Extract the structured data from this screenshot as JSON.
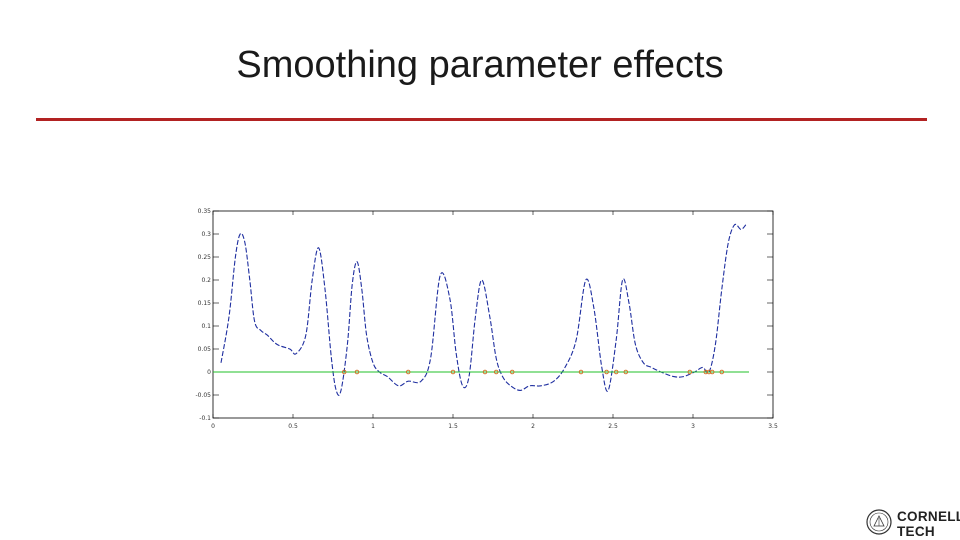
{
  "slide": {
    "title": "Smoothing parameter effects",
    "rule_color": "#b22222"
  },
  "logo": {
    "line1": "CORNELL",
    "line2": "TECH",
    "color": "#222222"
  },
  "chart_data": {
    "type": "line",
    "title": "",
    "xlabel": "",
    "ylabel": "",
    "xlim": [
      0,
      3.5
    ],
    "ylim": [
      -0.1,
      0.35
    ],
    "x_ticks": [
      0,
      0.5,
      1,
      1.5,
      2,
      2.5,
      3,
      3.5
    ],
    "x_tick_labels": [
      "0",
      "0.5",
      "1",
      "1.5",
      "2",
      "2.5",
      "3",
      "3.5"
    ],
    "y_ticks": [
      -0.1,
      -0.05,
      0,
      0.05,
      0.1,
      0.15,
      0.2,
      0.25,
      0.3,
      0.35
    ],
    "y_tick_labels": [
      "-0.1",
      "-0.05",
      "0",
      "0.05",
      "0.1",
      "0.15",
      "0.2",
      "0.25",
      "0.3",
      "0.35"
    ],
    "grid": false,
    "legend": "none",
    "series": [
      {
        "style": "dashed",
        "color": "#1f2fa0",
        "x": [
          0.05,
          0.1,
          0.14,
          0.17,
          0.2,
          0.23,
          0.26,
          0.3,
          0.34,
          0.4,
          0.48,
          0.52,
          0.58,
          0.62,
          0.66,
          0.7,
          0.74,
          0.77,
          0.8,
          0.84,
          0.87,
          0.9,
          0.93,
          0.96,
          1.0,
          1.04,
          1.09,
          1.16,
          1.22,
          1.3,
          1.36,
          1.42,
          1.48,
          1.52,
          1.56,
          1.6,
          1.64,
          1.68,
          1.73,
          1.77,
          1.81,
          1.86,
          1.92,
          1.98,
          2.05,
          2.13,
          2.2,
          2.27,
          2.33,
          2.38,
          2.43,
          2.47,
          2.52,
          2.56,
          2.6,
          2.64,
          2.69,
          2.74,
          2.8,
          2.88,
          2.94,
          3.01,
          3.06,
          3.1,
          3.14,
          3.18,
          3.22,
          3.26,
          3.3,
          3.33
        ],
        "y": [
          0.02,
          0.12,
          0.25,
          0.3,
          0.28,
          0.2,
          0.11,
          0.09,
          0.08,
          0.06,
          0.05,
          0.04,
          0.08,
          0.2,
          0.27,
          0.18,
          0.03,
          -0.04,
          -0.04,
          0.06,
          0.19,
          0.24,
          0.18,
          0.08,
          0.02,
          0.0,
          -0.01,
          -0.03,
          -0.02,
          -0.02,
          0.03,
          0.21,
          0.16,
          0.04,
          -0.03,
          -0.01,
          0.12,
          0.2,
          0.12,
          0.03,
          -0.01,
          -0.03,
          -0.04,
          -0.03,
          -0.03,
          -0.02,
          0.01,
          0.07,
          0.2,
          0.14,
          0.01,
          -0.04,
          0.07,
          0.2,
          0.15,
          0.06,
          0.02,
          0.01,
          0.0,
          -0.01,
          -0.01,
          0.0,
          0.01,
          0.0,
          0.06,
          0.18,
          0.28,
          0.32,
          0.31,
          0.32
        ]
      },
      {
        "style": "solid",
        "color": "#22c02a",
        "x": [
          0.0,
          3.35
        ],
        "y": [
          0.0,
          0.0
        ]
      }
    ],
    "markers": {
      "color": "#d2691e",
      "x": [
        0.82,
        0.9,
        1.22,
        1.5,
        1.7,
        1.77,
        1.87,
        2.3,
        2.46,
        2.52,
        2.58,
        2.98,
        3.08,
        3.1,
        3.12,
        3.18
      ],
      "y": [
        0,
        0,
        0,
        0,
        0,
        0,
        0,
        0,
        0,
        0,
        0,
        0,
        0,
        0,
        0,
        0
      ]
    }
  }
}
